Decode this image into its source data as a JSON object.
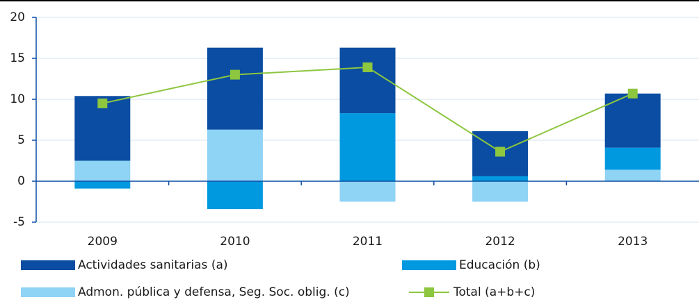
{
  "chart_data": {
    "type": "bar",
    "stacked": true,
    "categories": [
      "2009",
      "2010",
      "2011",
      "2012",
      "2013"
    ],
    "series": [
      {
        "name": "Admon. pública y defensa, Seg. Soc. oblig. (c)",
        "color": "#8fd3f5",
        "values": [
          2.5,
          6.3,
          -2.5,
          -2.5,
          1.4
        ]
      },
      {
        "name": "Educación (b)",
        "color": "#0099e0",
        "values": [
          -0.9,
          -3.4,
          8.3,
          0.6,
          2.7
        ]
      },
      {
        "name": "Actividades sanitarias (a)",
        "color": "#0a4da2",
        "values": [
          7.9,
          10.0,
          8.0,
          5.5,
          6.6
        ]
      },
      {
        "name": "Total (a+b+c)",
        "type": "line",
        "color": "#8dc63f",
        "values": [
          9.5,
          13.0,
          13.9,
          3.6,
          10.7
        ]
      }
    ],
    "ylim": [
      -5,
      20
    ],
    "yticks": [
      -5,
      0,
      5,
      10,
      15,
      20
    ],
    "grid": true
  }
}
